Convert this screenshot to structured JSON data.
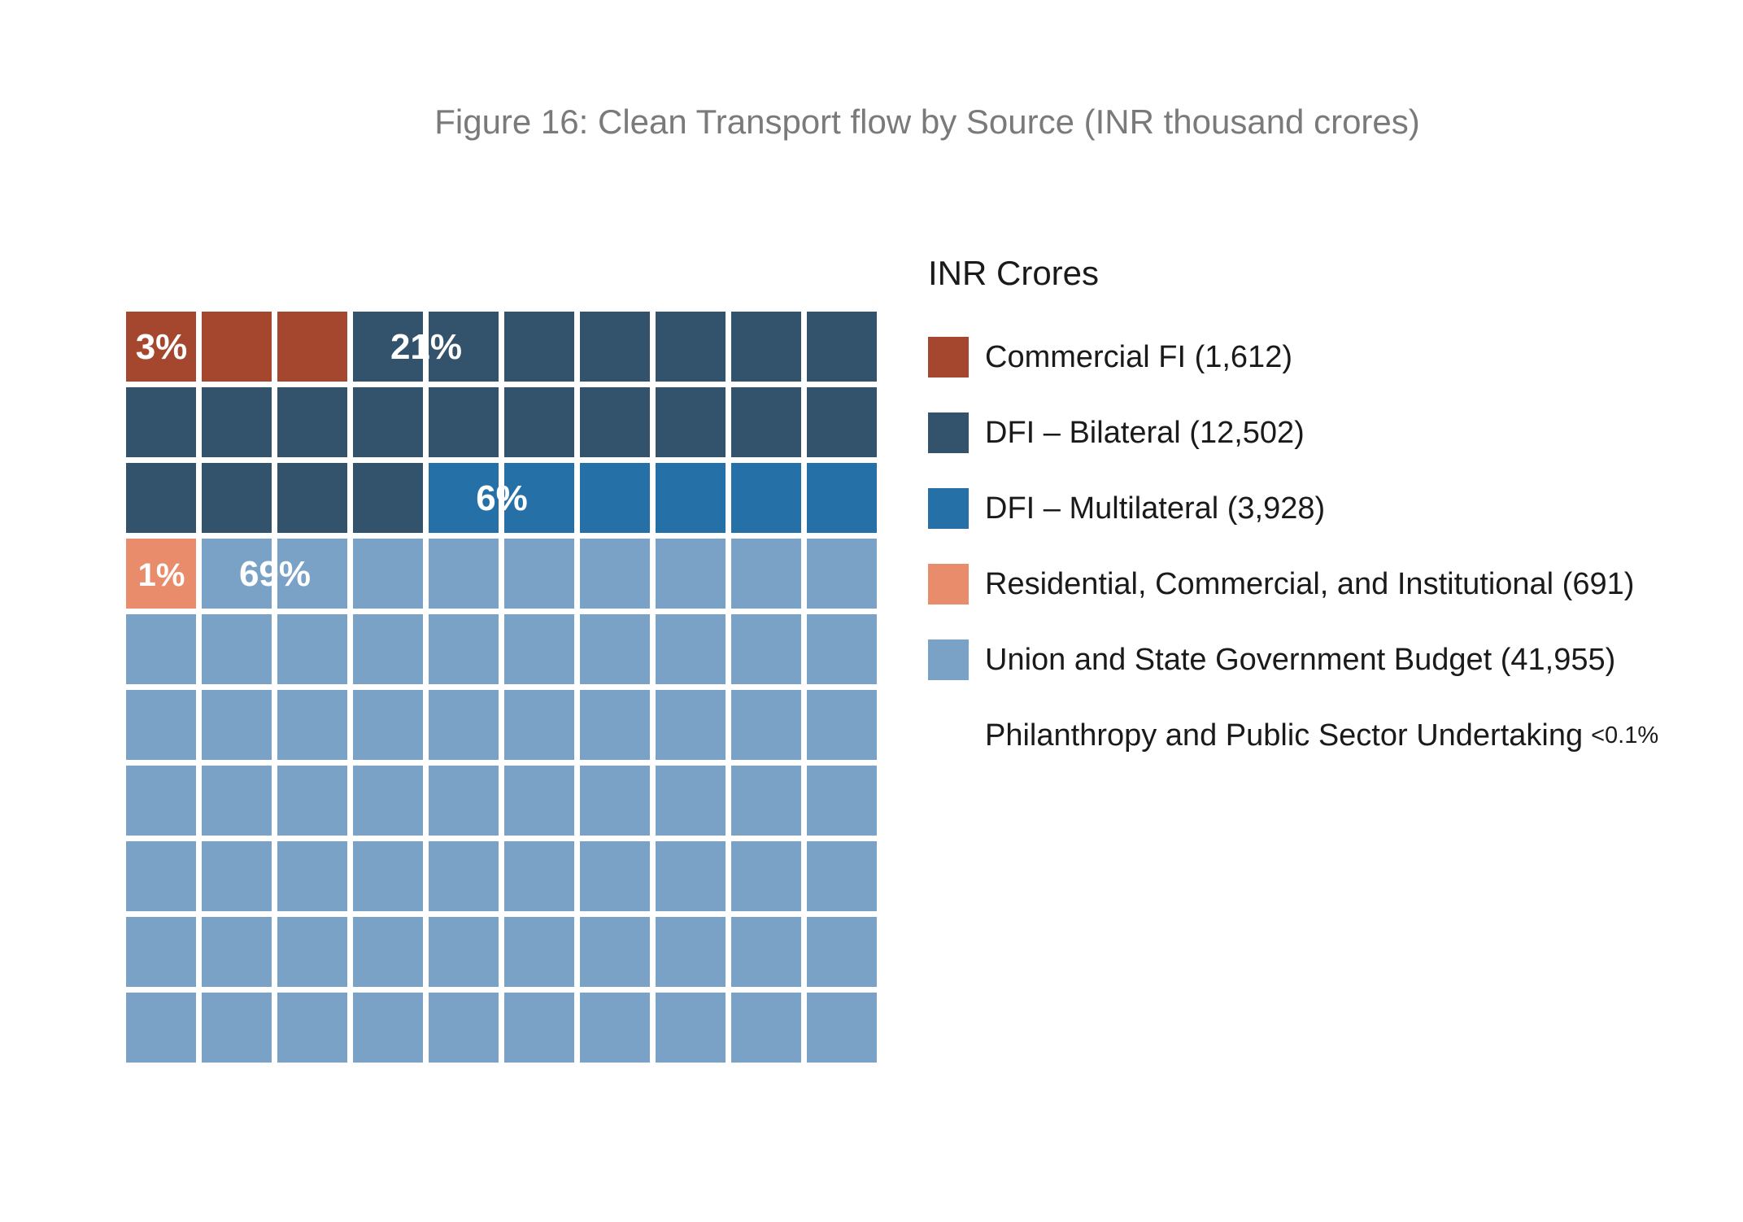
{
  "title": "Figure 16: Clean Transport flow by Source (INR thousand crores)",
  "legend_title": "INR Crores",
  "chart_data": {
    "type": "waffle",
    "grid": {
      "rows": 10,
      "cols": 10
    },
    "title": "Figure 16: Clean Transport flow by Source (INR thousand crores)",
    "series": [
      {
        "name": "Commercial FI",
        "label": "Commercial FI  (1,612)",
        "value": 1612,
        "percent_label": "3%",
        "cells": 3,
        "color": "#a5462e"
      },
      {
        "name": "DFI – Bilateral",
        "label": "DFI – Bilateral (12,502)",
        "value": 12502,
        "percent_label": "21%",
        "cells": 21,
        "color": "#33526b"
      },
      {
        "name": "DFI – Multilateral",
        "label": "DFI – Multilateral (3,928)",
        "value": 3928,
        "percent_label": "6%",
        "cells": 6,
        "color": "#2670a8"
      },
      {
        "name": "Residential, Commercial, and Institutional",
        "label": "Residential, Commercial, and Institutional  (691)",
        "value": 691,
        "percent_label": "1%",
        "cells": 1,
        "color": "#e88c6c"
      },
      {
        "name": "Union and State Government Budget",
        "label": "Union and State Government Budget  (41,955)",
        "value": 41955,
        "percent_label": "69%",
        "cells": 69,
        "color": "#7aa1c6"
      },
      {
        "name": "Philanthropy and Public Sector Undertaking",
        "label": "Philanthropy and Public Sector Undertaking",
        "note": "<0.1%",
        "cells": 0,
        "color": ""
      }
    ]
  }
}
